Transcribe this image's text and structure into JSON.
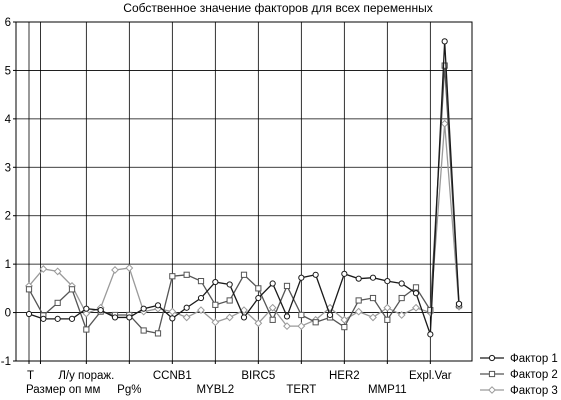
{
  "chart_data": {
    "type": "line",
    "title": "Собственное значение факторов для всех переменных",
    "xlabel": "",
    "ylabel": "",
    "ylim": [
      -1,
      6
    ],
    "yticks": [
      -1,
      0,
      1,
      2,
      3,
      4,
      5,
      6
    ],
    "grid": true,
    "legend_position": "right",
    "x_positions": [
      1,
      2,
      3,
      4,
      5,
      6,
      7,
      8,
      9,
      10,
      11,
      12,
      13,
      14,
      15,
      16,
      17,
      18,
      19,
      20,
      21,
      22,
      23,
      24,
      25,
      26,
      27,
      28,
      29,
      30,
      31
    ],
    "x_tick_labels": [
      {
        "x": 1,
        "label": "T",
        "row": 1
      },
      {
        "x": 1.8,
        "label": "Размер оп мм",
        "row": 2
      },
      {
        "x": 5,
        "label": "Л/у пораж.",
        "row": 1
      },
      {
        "x": 8,
        "label": "Pg%",
        "row": 2
      },
      {
        "x": 11,
        "label": "CCNB1",
        "row": 1
      },
      {
        "x": 14,
        "label": "MYBL2",
        "row": 2
      },
      {
        "x": 17,
        "label": "BIRC5",
        "row": 1
      },
      {
        "x": 20,
        "label": "TERT",
        "row": 2
      },
      {
        "x": 23,
        "label": "HER2",
        "row": 1
      },
      {
        "x": 26,
        "label": "MMP11",
        "row": 2
      },
      {
        "x": 29,
        "label": "Expl.Var",
        "row": 1
      }
    ],
    "series": [
      {
        "name": "Фактор 1",
        "color": "#1a1a1a",
        "marker": "circle",
        "values": [
          -0.03,
          -0.13,
          -0.13,
          -0.13,
          0.08,
          0.05,
          -0.1,
          -0.1,
          0.08,
          0.15,
          -0.12,
          0.1,
          0.3,
          0.63,
          0.58,
          -0.1,
          0.3,
          0.6,
          -0.08,
          0.72,
          0.78,
          -0.05,
          0.8,
          0.7,
          0.72,
          0.65,
          0.6,
          0.4,
          -0.45,
          5.6,
          0.18
        ]
      },
      {
        "name": "Фактор 2",
        "color": "#555555",
        "marker": "square",
        "values": [
          0.48,
          -0.06,
          0.2,
          0.48,
          -0.35,
          0.02,
          -0.05,
          -0.05,
          -0.37,
          -0.43,
          0.75,
          0.78,
          0.65,
          0.16,
          0.25,
          0.78,
          0.5,
          -0.15,
          0.55,
          -0.05,
          -0.2,
          -0.1,
          -0.3,
          0.25,
          0.3,
          -0.15,
          0.3,
          0.52,
          0.05,
          5.1,
          0.15
        ]
      },
      {
        "name": "Фактор 3",
        "color": "#9a9a9a",
        "marker": "diamond",
        "values": [
          0.55,
          0.9,
          0.85,
          0.55,
          -0.02,
          0.1,
          0.88,
          0.92,
          0.02,
          0.08,
          0.02,
          -0.1,
          0.05,
          -0.2,
          -0.1,
          0.05,
          -0.22,
          0.1,
          -0.28,
          -0.28,
          -0.15,
          0.1,
          -0.15,
          0.02,
          -0.1,
          0.1,
          -0.05,
          0.1,
          0.0,
          3.9,
          0.12
        ]
      }
    ]
  }
}
